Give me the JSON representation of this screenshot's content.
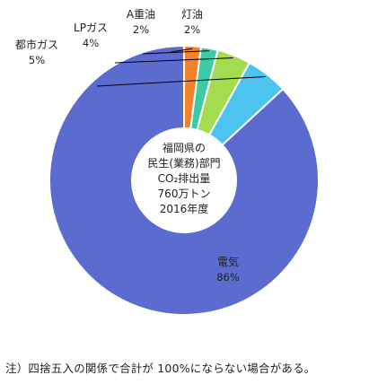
{
  "chart_data": {
    "type": "pie",
    "donut": true,
    "categories": [
      "電気",
      "都市ガス",
      "LPガス",
      "A重油",
      "灯油"
    ],
    "values": [
      86,
      5,
      4,
      2,
      2
    ],
    "value_labels": [
      "86%",
      "5%",
      "4%",
      "2%",
      "2%"
    ],
    "colors": [
      "#5b6bd0",
      "#4dc3ef",
      "#a3dc4f",
      "#3fcaa6",
      "#f4822a"
    ],
    "center_text": [
      "福岡県の",
      "民生(業務)部門",
      "CO₂排出量",
      "760万トン",
      "2016年度"
    ],
    "legend": "none"
  },
  "footnote": "注）四捨五入の関係で合計が 100%にならない場合がある。"
}
